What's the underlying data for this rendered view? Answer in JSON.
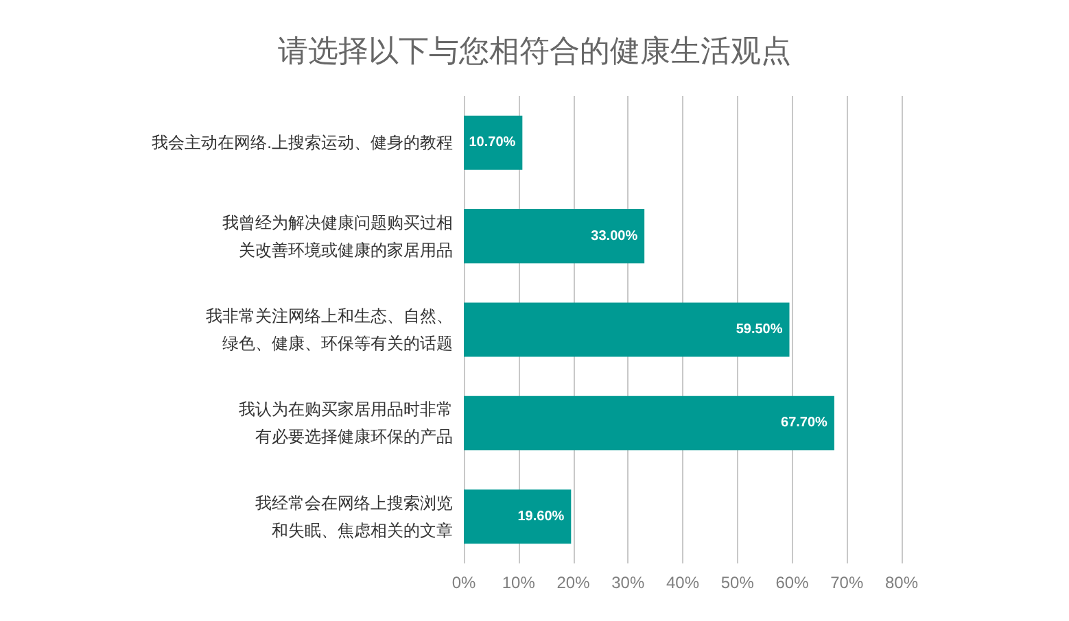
{
  "chart_data": {
    "type": "bar",
    "orientation": "horizontal",
    "title": "请选择以下与您相符合的健康生活观点",
    "categories": [
      "我会主动在网络.上搜索运动、健身的教程",
      "我曾经为解决健康问题购买过相关改善环境或健康的家居用品",
      "我非常关注网络上和生态、自然、绿色、健康、环保等有关的话题",
      "我认为在购买家居用品时非常有必要选择健康环保的产品",
      "我经常会在网络上搜索浏览和失眠、焦虑相关的文章"
    ],
    "values": [
      10.7,
      33.0,
      59.5,
      67.7,
      19.6
    ],
    "value_labels": [
      "10.70%",
      "33.00%",
      "59.50%",
      "67.70%",
      "19.60%"
    ],
    "color": "#009a93",
    "xlim": [
      0,
      80
    ],
    "xticks": [
      {
        "value": 0,
        "label": "0%"
      },
      {
        "value": 10,
        "label": "10%"
      },
      {
        "value": 20,
        "label": "20%"
      },
      {
        "value": 30,
        "label": "30%"
      },
      {
        "value": 40,
        "label": "40%"
      },
      {
        "value": 50,
        "label": "50%"
      },
      {
        "value": 60,
        "label": "60%"
      },
      {
        "value": 70,
        "label": "70%"
      },
      {
        "value": 80,
        "label": "80%"
      }
    ],
    "grid": "x"
  }
}
